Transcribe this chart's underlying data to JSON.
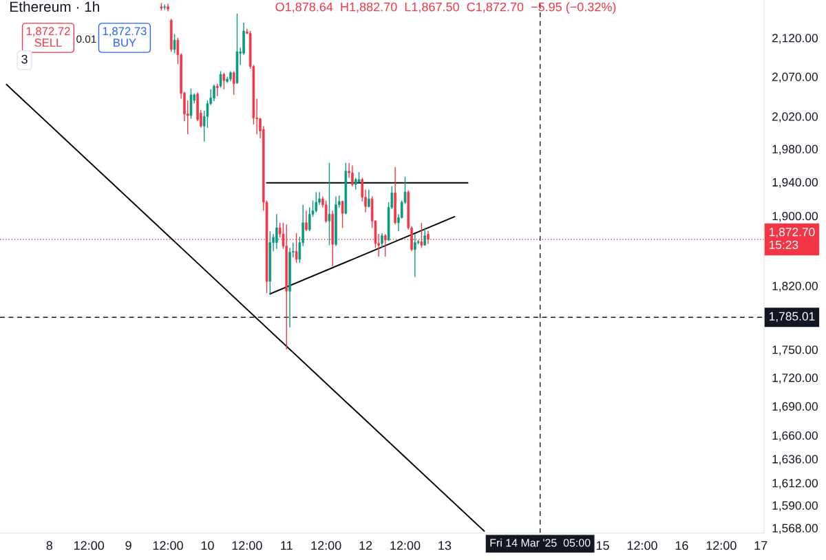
{
  "chart_data": {
    "type": "candlestick",
    "title": "Ethereum · 1h",
    "log": "y",
    "legend": false,
    "grid": false,
    "xlim": [
      "2025-03-07T09:00",
      "2025-03-17T01:00"
    ],
    "xticks": [
      {
        "value": "2025-03-08T00:00",
        "label": "8"
      },
      {
        "value": "2025-03-08T12:00",
        "label": "12:00"
      },
      {
        "value": "2025-03-09T00:00",
        "label": "9"
      },
      {
        "value": "2025-03-09T12:00",
        "label": "12:00"
      },
      {
        "value": "2025-03-10T00:00",
        "label": "10"
      },
      {
        "value": "2025-03-10T12:00",
        "label": "12:00"
      },
      {
        "value": "2025-03-11T00:00",
        "label": "11"
      },
      {
        "value": "2025-03-11T12:00",
        "label": "12:00"
      },
      {
        "value": "2025-03-12T00:00",
        "label": "12"
      },
      {
        "value": "2025-03-12T12:00",
        "label": "12:00"
      },
      {
        "value": "2025-03-13T00:00",
        "label": "13"
      },
      {
        "value": "2025-03-15T00:00",
        "label": "15"
      },
      {
        "value": "2025-03-15T12:00",
        "label": "12:00"
      },
      {
        "value": "2025-03-16T00:00",
        "label": "16"
      },
      {
        "value": "2025-03-16T12:00",
        "label": "12:00"
      },
      {
        "value": "2025-03-17T00:00",
        "label": "17"
      }
    ],
    "ylim": [
      1563,
      2170
    ],
    "yticks": [
      {
        "value": 1568,
        "label": "1,568.00"
      },
      {
        "value": 1590,
        "label": "1,590.00"
      },
      {
        "value": 1612,
        "label": "1,612.00"
      },
      {
        "value": 1636,
        "label": "1,636.00"
      },
      {
        "value": 1660,
        "label": "1,660.00"
      },
      {
        "value": 1690,
        "label": "1,690.00"
      },
      {
        "value": 1720,
        "label": "1,720.00"
      },
      {
        "value": 1750,
        "label": "1,750.00"
      },
      {
        "value": 1820,
        "label": "1,820.00"
      },
      {
        "value": 1900,
        "label": "1,900.00"
      },
      {
        "value": 1940,
        "label": "1,940.00"
      },
      {
        "value": 1980,
        "label": "1,980.00"
      },
      {
        "value": 2020,
        "label": "2,020.00"
      },
      {
        "value": 2070,
        "label": "2,070.00"
      },
      {
        "value": 2120,
        "label": "2,120.00"
      }
    ],
    "series": [
      {
        "x": [
          "2025-03-09T10:00",
          "2025-03-09T11:00",
          "2025-03-09T12:00",
          "2025-03-09T13:00",
          "2025-03-09T14:00",
          "2025-03-09T15:00",
          "2025-03-09T16:00",
          "2025-03-09T17:00",
          "2025-03-09T18:00",
          "2025-03-09T19:00",
          "2025-03-09T20:00",
          "2025-03-09T21:00",
          "2025-03-09T22:00",
          "2025-03-09T23:00",
          "2025-03-10T00:00",
          "2025-03-10T01:00",
          "2025-03-10T02:00",
          "2025-03-10T03:00",
          "2025-03-10T04:00",
          "2025-03-10T05:00",
          "2025-03-10T06:00",
          "2025-03-10T07:00",
          "2025-03-10T08:00",
          "2025-03-10T09:00",
          "2025-03-10T10:00",
          "2025-03-10T11:00",
          "2025-03-10T12:00",
          "2025-03-10T13:00",
          "2025-03-10T14:00",
          "2025-03-10T15:00",
          "2025-03-10T16:00",
          "2025-03-10T17:00",
          "2025-03-10T18:00",
          "2025-03-10T19:00",
          "2025-03-10T20:00",
          "2025-03-10T21:00",
          "2025-03-10T22:00",
          "2025-03-10T23:00",
          "2025-03-11T00:00",
          "2025-03-11T01:00",
          "2025-03-11T02:00",
          "2025-03-11T03:00",
          "2025-03-11T04:00",
          "2025-03-11T05:00",
          "2025-03-11T06:00",
          "2025-03-11T07:00",
          "2025-03-11T08:00",
          "2025-03-11T09:00",
          "2025-03-11T10:00",
          "2025-03-11T11:00",
          "2025-03-11T12:00",
          "2025-03-11T13:00",
          "2025-03-11T14:00",
          "2025-03-11T15:00",
          "2025-03-11T16:00",
          "2025-03-11T17:00",
          "2025-03-11T18:00",
          "2025-03-11T19:00",
          "2025-03-11T20:00",
          "2025-03-11T21:00",
          "2025-03-11T22:00",
          "2025-03-11T23:00",
          "2025-03-12T00:00",
          "2025-03-12T01:00",
          "2025-03-12T02:00",
          "2025-03-12T03:00",
          "2025-03-12T04:00",
          "2025-03-12T05:00",
          "2025-03-12T06:00",
          "2025-03-12T07:00",
          "2025-03-12T08:00",
          "2025-03-12T09:00",
          "2025-03-12T10:00",
          "2025-03-12T11:00",
          "2025-03-12T12:00",
          "2025-03-12T13:00",
          "2025-03-12T14:00",
          "2025-03-12T15:00",
          "2025-03-12T16:00",
          "2025-03-12T17:00",
          "2025-03-12T18:00",
          "2025-03-12T19:00"
        ],
        "ohlc": [
          [
            2161,
            2166,
            2156,
            2159
          ],
          [
            2160,
            2164,
            2157,
            2161
          ],
          [
            2161,
            2165,
            2155,
            2158
          ],
          [
            2143,
            2145,
            2102,
            2105
          ],
          [
            2105,
            2125,
            2100,
            2117
          ],
          [
            2117,
            2120,
            2086,
            2098
          ],
          [
            2098,
            2100,
            2042,
            2049
          ],
          [
            2049,
            2051,
            2014,
            2023
          ],
          [
            2023,
            2040,
            1998,
            2021
          ],
          [
            2021,
            2055,
            2017,
            2047
          ],
          [
            2040,
            2049,
            2036,
            2047
          ],
          [
            2048,
            2050,
            2014,
            2016
          ],
          [
            2024,
            2028,
            2006,
            2008
          ],
          [
            2008,
            2027,
            1989,
            2020
          ],
          [
            2020,
            2040,
            2006,
            2036
          ],
          [
            2036,
            2054,
            2034,
            2043
          ],
          [
            2043,
            2060,
            2039,
            2058
          ],
          [
            2058,
            2061,
            2045,
            2056
          ],
          [
            2058,
            2077,
            2056,
            2073
          ],
          [
            2073,
            2075,
            2054,
            2065
          ],
          [
            2064,
            2070,
            2062,
            2067
          ],
          [
            2067,
            2077,
            2064,
            2075
          ],
          [
            2075,
            2077,
            2047,
            2061
          ],
          [
            2062,
            2152,
            2061,
            2102
          ],
          [
            2100,
            2107,
            2085,
            2102
          ],
          [
            2100,
            2140,
            2098,
            2129
          ],
          [
            2128,
            2132,
            2125,
            2126
          ],
          [
            2126,
            2129,
            2080,
            2083
          ],
          [
            2083,
            2085,
            2010,
            2018
          ],
          [
            2018,
            2042,
            1998,
            2017
          ],
          [
            2017,
            2018,
            1993,
            2002
          ],
          [
            2004,
            2008,
            1906,
            1916
          ],
          [
            1916,
            1918,
            1812,
            1825
          ],
          [
            1825,
            1882,
            1811,
            1869
          ],
          [
            1869,
            1879,
            1859,
            1875
          ],
          [
            1869,
            1902,
            1862,
            1886
          ],
          [
            1886,
            1892,
            1875,
            1879
          ],
          [
            1879,
            1892,
            1862,
            1865
          ],
          [
            1865,
            1890,
            1750,
            1814
          ],
          [
            1814,
            1863,
            1774,
            1858
          ],
          [
            1858,
            1869,
            1852,
            1859
          ],
          [
            1859,
            1880,
            1846,
            1850
          ],
          [
            1850,
            1876,
            1846,
            1869
          ],
          [
            1869,
            1913,
            1865,
            1892
          ],
          [
            1892,
            1906,
            1882,
            1884
          ],
          [
            1884,
            1910,
            1882,
            1902
          ],
          [
            1902,
            1918,
            1899,
            1906
          ],
          [
            1906,
            1928,
            1904,
            1916
          ],
          [
            1916,
            1928,
            1913,
            1920
          ],
          [
            1920,
            1923,
            1910,
            1913
          ],
          [
            1913,
            1918,
            1892,
            1894
          ],
          [
            1894,
            1963,
            1866,
            1902
          ],
          [
            1902,
            1906,
            1842,
            1867
          ],
          [
            1867,
            1923,
            1865,
            1913
          ],
          [
            1913,
            1924,
            1910,
            1917
          ],
          [
            1917,
            1918,
            1886,
            1903
          ],
          [
            1903,
            1963,
            1902,
            1953
          ],
          [
            1953,
            1963,
            1945,
            1951
          ],
          [
            1951,
            1960,
            1935,
            1937
          ],
          [
            1937,
            1945,
            1931,
            1943
          ],
          [
            1940,
            1952,
            1939,
            1943
          ],
          [
            1943,
            1945,
            1917,
            1922
          ],
          [
            1922,
            1931,
            1904,
            1911
          ],
          [
            1911,
            1931,
            1910,
            1920
          ],
          [
            1920,
            1923,
            1886,
            1894
          ],
          [
            1894,
            1895,
            1863,
            1868
          ],
          [
            1868,
            1879,
            1853,
            1866
          ],
          [
            1868,
            1880,
            1863,
            1877
          ],
          [
            1877,
            1879,
            1853,
            1872
          ],
          [
            1872,
            1916,
            1871,
            1910
          ],
          [
            1910,
            1935,
            1908,
            1927
          ],
          [
            1927,
            1958,
            1890,
            1892
          ],
          [
            1892,
            1902,
            1882,
            1898
          ],
          [
            1898,
            1918,
            1897,
            1916
          ],
          [
            1916,
            1946,
            1914,
            1928
          ],
          [
            1928,
            1930,
            1884,
            1886
          ],
          [
            1886,
            1888,
            1859,
            1861
          ],
          [
            1861,
            1879,
            1830,
            1869
          ],
          [
            1869,
            1872,
            1867,
            1870
          ],
          [
            1870,
            1892,
            1863,
            1866
          ],
          [
            1866,
            1886,
            1866,
            1877
          ],
          [
            1878.64,
            1882.7,
            1867.5,
            1872.7
          ]
        ],
        "colors": [
          "#f23645",
          "#089981",
          "#f23645",
          "#f23645",
          "#089981",
          "#f23645",
          "#f23645",
          "#f23645",
          "#f23645",
          "#089981",
          "#089981",
          "#f23645",
          "#f23645",
          "#089981",
          "#089981",
          "#089981",
          "#089981",
          "#f23645",
          "#089981",
          "#f23645",
          "#089981",
          "#089981",
          "#f23645",
          "#089981",
          "#089981",
          "#089981",
          "#f23645",
          "#f23645",
          "#f23645",
          "#f23645",
          "#f23645",
          "#f23645",
          "#f23645",
          "#089981",
          "#089981",
          "#089981",
          "#f23645",
          "#f23645",
          "#f23645",
          "#089981",
          "#089981",
          "#f23645",
          "#089981",
          "#089981",
          "#f23645",
          "#089981",
          "#089981",
          "#089981",
          "#089981",
          "#f23645",
          "#f23645",
          "#089981",
          "#f23645",
          "#089981",
          "#089981",
          "#f23645",
          "#089981",
          "#f23645",
          "#f23645",
          "#089981",
          "#089981",
          "#f23645",
          "#f23645",
          "#089981",
          "#f23645",
          "#f23645",
          "#f23645",
          "#089981",
          "#f23645",
          "#089981",
          "#089981",
          "#f23645",
          "#089981",
          "#089981",
          "#089981",
          "#f23645",
          "#f23645",
          "#089981",
          "#089981",
          "#f23645",
          "#089981",
          "#f23645"
        ]
      },
      {
        "type": "line",
        "color": "#000000",
        "line_style": "solid",
        "x": [
          "2025-03-07T11:00",
          "2025-03-13T12:00"
        ],
        "values": [
          2060,
          1565
        ]
      },
      {
        "type": "line",
        "color": "#000000",
        "line_style": "solid",
        "x": [
          "2025-03-10T18:00",
          "2025-03-13T07:00"
        ],
        "values": [
          1939,
          1939
        ]
      },
      {
        "type": "line",
        "color": "#000000",
        "line_style": "solid",
        "x": [
          "2025-03-10T19:00",
          "2025-03-13T03:00"
        ],
        "values": [
          1811,
          1899
        ]
      }
    ],
    "ref_lines": [
      {
        "axis": "y",
        "value": 1872.7,
        "label": "1,872.70\n15:23",
        "color": "#f23645",
        "line_style": "dotted"
      },
      {
        "axis": "y",
        "value": 1785.01,
        "label": "1,785.01",
        "color": "#131722",
        "line_style": "dashed"
      },
      {
        "axis": "x",
        "value": "2025-03-14T05:00",
        "label": "Fri 14 Mar '25  05:00",
        "color": "#131722",
        "line_style": "dashed"
      }
    ],
    "annotations": [
      "O1,878.64  H1,882.70  L1,867.50  C1,872.70  −5.95 (−0.32%)",
      "1,872.72\nSELL",
      "0.01",
      "1,872.73\nBUY",
      "3"
    ]
  }
}
